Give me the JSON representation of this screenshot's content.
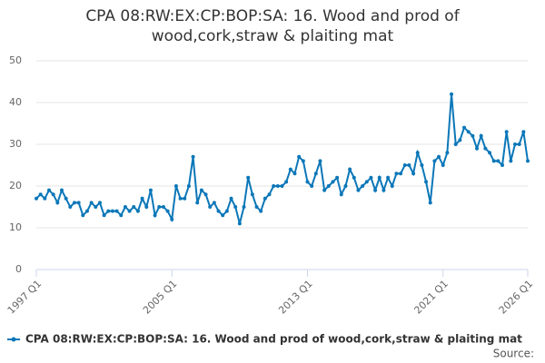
{
  "chart_data": {
    "type": "line",
    "title": [
      "CPA 08:RW:EX:CP:BOP:SA: 16. Wood and prod of",
      "wood,cork,straw & plaiting mat"
    ],
    "categories": [
      "1997 Q1",
      null,
      null,
      null,
      null,
      null,
      null,
      null,
      null,
      null,
      null,
      null,
      null,
      null,
      null,
      null,
      null,
      null,
      null,
      null,
      null,
      null,
      null,
      null,
      null,
      null,
      null,
      null,
      null,
      null,
      null,
      null,
      "2005 Q1",
      null,
      null,
      null,
      null,
      null,
      null,
      null,
      null,
      null,
      null,
      null,
      null,
      null,
      null,
      null,
      null,
      null,
      null,
      null,
      null,
      null,
      null,
      null,
      null,
      null,
      null,
      null,
      null,
      null,
      null,
      null,
      "2013 Q1",
      null,
      null,
      null,
      null,
      null,
      null,
      null,
      null,
      null,
      null,
      null,
      null,
      null,
      null,
      null,
      null,
      null,
      null,
      null,
      null,
      null,
      null,
      null,
      null,
      null,
      null,
      null,
      null,
      null,
      null,
      null,
      "2021 Q1",
      null,
      null,
      null,
      null,
      null,
      null,
      null,
      null,
      null,
      null,
      null,
      null,
      null,
      null,
      null,
      null,
      null,
      null,
      null,
      "2026 Q1"
    ],
    "series": [
      {
        "name": "CPA 08:RW:EX:CP:BOP:SA: 16. Wood and prod of wood,cork,straw & plaiting mat",
        "color": "#0b77b8",
        "values": [
          17,
          18,
          17,
          19,
          18,
          16,
          19,
          17,
          15,
          16,
          16,
          13,
          14,
          16,
          15,
          16,
          13,
          14,
          14,
          14,
          13,
          15,
          14,
          15,
          14,
          17,
          15,
          19,
          13,
          15,
          15,
          14,
          12,
          20,
          17,
          17,
          20,
          27,
          16,
          19,
          18,
          15,
          16,
          14,
          13,
          14,
          17,
          15,
          11,
          15,
          22,
          18,
          15,
          14,
          17,
          18,
          20,
          20,
          20,
          21,
          24,
          23,
          27,
          26,
          21,
          20,
          23,
          26,
          19,
          20,
          21,
          22,
          18,
          20,
          24,
          22,
          19,
          20,
          21,
          22,
          19,
          22,
          19,
          22,
          20,
          23,
          23,
          25,
          25,
          23,
          28,
          25,
          21,
          16,
          26,
          27,
          25,
          28,
          42,
          30,
          31,
          34,
          33,
          32,
          29,
          32,
          29,
          28,
          26,
          26,
          25,
          33,
          26,
          30,
          30,
          33,
          26
        ]
      }
    ],
    "ylim": [
      0,
      50
    ],
    "yticks": [
      0,
      10,
      20,
      30,
      40,
      50
    ],
    "grid": true,
    "source": "Source:"
  }
}
